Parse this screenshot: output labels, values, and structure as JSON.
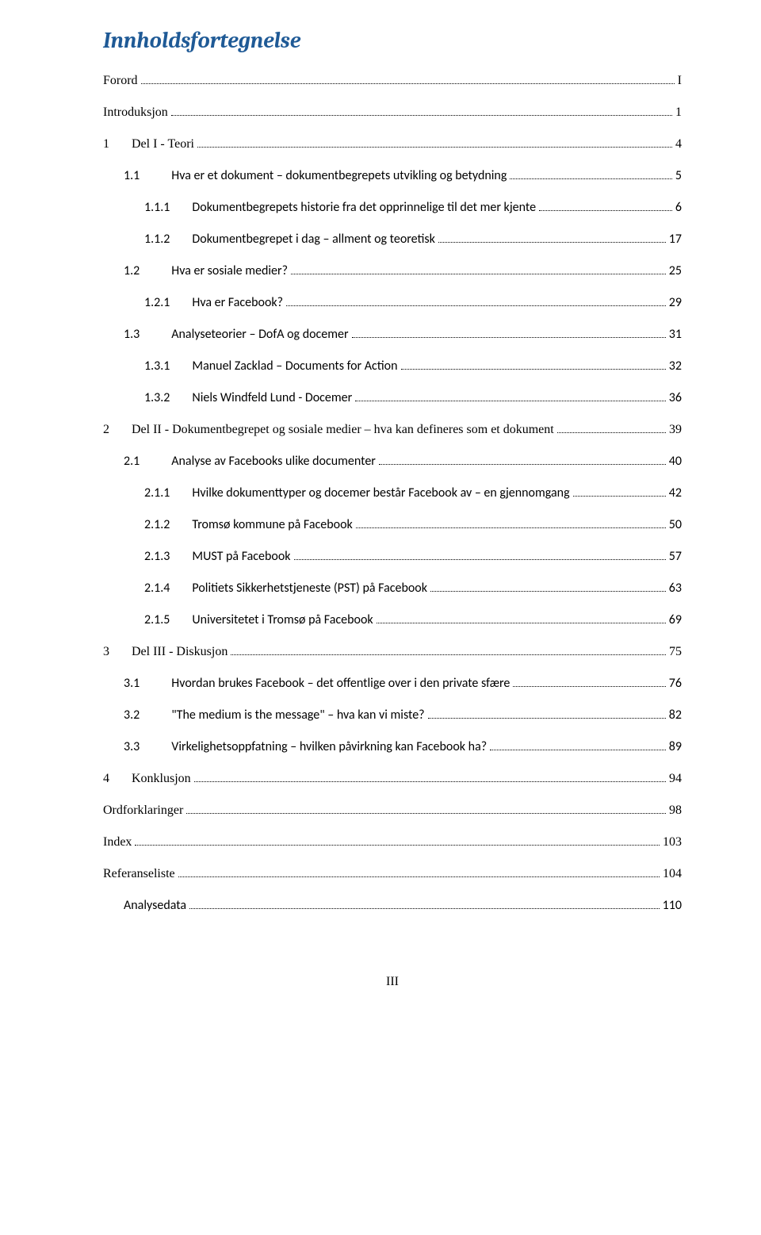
{
  "title": "Innholdsfortegnelse",
  "footer": "III",
  "toc": [
    {
      "level": 0,
      "font": "serif",
      "gap": "",
      "num": "",
      "text": "Forord",
      "page": "I"
    },
    {
      "level": 0,
      "font": "serif",
      "gap": "",
      "num": "",
      "text": "Introduksjon",
      "page": "1"
    },
    {
      "level": 1,
      "font": "serif",
      "gap": "gap-narrow",
      "num": "1",
      "text": "Del I - Teori",
      "page": "4"
    },
    {
      "level": 2,
      "font": "calibri",
      "gap": "gap-med",
      "num": "1.1",
      "text": "Hva er et dokument – dokumentbegrepets utvikling og betydning",
      "page": "5"
    },
    {
      "level": 3,
      "font": "calibri",
      "gap": "gap-wide3",
      "num": "1.1.1",
      "text": "Dokumentbegrepets historie fra det opprinnelige til det mer kjente",
      "page": "6"
    },
    {
      "level": 3,
      "font": "calibri",
      "gap": "gap-wide3",
      "num": "1.1.2",
      "text": "Dokumentbegrepet i dag – allment og teoretisk",
      "page": "17"
    },
    {
      "level": 2,
      "font": "calibri",
      "gap": "gap-med",
      "num": "1.2",
      "text": "Hva er sosiale medier?",
      "page": "25"
    },
    {
      "level": 3,
      "font": "calibri",
      "gap": "gap-wide3",
      "num": "1.2.1",
      "text": "Hva er Facebook?",
      "page": "29"
    },
    {
      "level": 2,
      "font": "calibri",
      "gap": "gap-med",
      "num": "1.3",
      "text": "Analyseteorier – DofA og docemer",
      "page": "31"
    },
    {
      "level": 3,
      "font": "calibri",
      "gap": "gap-wide3",
      "num": "1.3.1",
      "text": "Manuel Zacklad – Documents for Action",
      "page": "32"
    },
    {
      "level": 3,
      "font": "calibri",
      "gap": "gap-wide3",
      "num": "1.3.2",
      "text": "Niels Windfeld Lund  - Docemer",
      "page": "36"
    },
    {
      "level": 1,
      "font": "serif",
      "gap": "gap-narrow",
      "num": "2",
      "text": "Del II - Dokumentbegrepet og sosiale medier – hva kan defineres som et dokument",
      "page": "39"
    },
    {
      "level": 2,
      "font": "calibri",
      "gap": "gap-med",
      "num": "2.1",
      "text": "Analyse av Facebooks ulike documenter",
      "page": "40"
    },
    {
      "level": 3,
      "font": "calibri",
      "gap": "gap-wide3",
      "num": "2.1.1",
      "text": "Hvilke dokumenttyper og docemer består Facebook av – en gjennomgang",
      "page": "42"
    },
    {
      "level": 3,
      "font": "calibri",
      "gap": "gap-wide3",
      "num": "2.1.2",
      "text": "Tromsø kommune på Facebook",
      "page": "50"
    },
    {
      "level": 3,
      "font": "calibri",
      "gap": "gap-wide3",
      "num": "2.1.3",
      "text": "MUST på Facebook",
      "page": "57"
    },
    {
      "level": 3,
      "font": "calibri",
      "gap": "gap-wide3",
      "num": "2.1.4",
      "text": "Politiets Sikkerhetstjeneste (PST) på Facebook",
      "page": "63"
    },
    {
      "level": 3,
      "font": "calibri",
      "gap": "gap-wide3",
      "num": "2.1.5",
      "text": "Universitetet i Tromsø på Facebook",
      "page": "69"
    },
    {
      "level": 1,
      "font": "serif",
      "gap": "gap-narrow",
      "num": "3",
      "text": "Del III - Diskusjon",
      "page": "75"
    },
    {
      "level": 2,
      "font": "calibri",
      "gap": "gap-med",
      "num": "3.1",
      "text": "Hvordan brukes Facebook – det offentlige over i den private sfære",
      "page": "76"
    },
    {
      "level": 2,
      "font": "calibri",
      "gap": "gap-med",
      "num": "3.2",
      "text": "\"The medium is the message\" – hva kan vi miste?",
      "page": "82"
    },
    {
      "level": 2,
      "font": "calibri",
      "gap": "gap-med",
      "num": "3.3",
      "text": "Virkelighetsoppfatning – hvilken påvirkning kan Facebook ha?",
      "page": "89"
    },
    {
      "level": 1,
      "font": "serif",
      "gap": "gap-narrow",
      "num": "4",
      "text": "Konklusjon",
      "page": "94"
    },
    {
      "level": 0,
      "font": "serif",
      "gap": "",
      "num": "",
      "text": "Ordforklaringer",
      "page": "98"
    },
    {
      "level": 0,
      "font": "serif",
      "gap": "",
      "num": "",
      "text": "Index",
      "page": "103"
    },
    {
      "level": 0,
      "font": "serif",
      "gap": "",
      "num": "",
      "text": "Referanseliste",
      "page": "104"
    },
    {
      "level": 2,
      "font": "calibri",
      "gap": "",
      "num": "",
      "text": "Analysedata",
      "page": "110"
    }
  ]
}
